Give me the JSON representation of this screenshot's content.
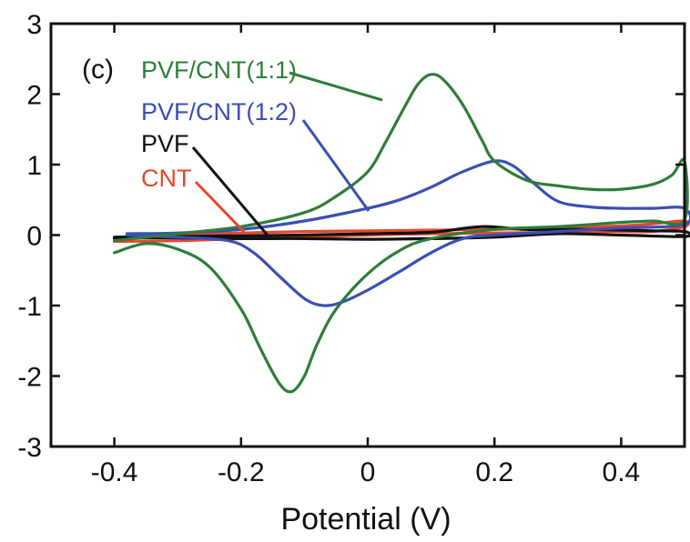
{
  "chart_data": {
    "type": "line",
    "title": "",
    "panel_label": "(c)",
    "xlabel": "Potential (V)",
    "ylabel": "",
    "xlim": [
      -0.5,
      0.5
    ],
    "ylim": [
      -3,
      3
    ],
    "x_ticks": [
      -0.4,
      -0.2,
      0,
      0.2,
      0.4
    ],
    "x_tick_labels": [
      "-0.4",
      "-0.2",
      "0",
      "0.2",
      "0.4"
    ],
    "y_ticks": [
      -3,
      -2,
      -1,
      0,
      1,
      2,
      3
    ],
    "y_tick_labels": [
      "-3",
      "-2",
      "-1",
      "0",
      "1",
      "2",
      "3"
    ],
    "grid": false,
    "legend_placement": "top-left",
    "series": [
      {
        "name": "PVF/CNT(1:1)",
        "color": "#2e7d3a",
        "forward": [
          [
            -0.4,
            -0.08
          ],
          [
            -0.3,
            0.02
          ],
          [
            -0.2,
            0.12
          ],
          [
            -0.1,
            0.32
          ],
          [
            -0.05,
            0.55
          ],
          [
            0.0,
            0.9
          ],
          [
            0.03,
            1.35
          ],
          [
            0.06,
            1.85
          ],
          [
            0.08,
            2.15
          ],
          [
            0.1,
            2.28
          ],
          [
            0.12,
            2.2
          ],
          [
            0.15,
            1.85
          ],
          [
            0.18,
            1.35
          ],
          [
            0.2,
            1.05
          ],
          [
            0.25,
            0.78
          ],
          [
            0.3,
            0.7
          ],
          [
            0.35,
            0.65
          ],
          [
            0.4,
            0.65
          ],
          [
            0.45,
            0.72
          ],
          [
            0.48,
            0.85
          ],
          [
            0.5,
            1.05
          ]
        ],
        "reverse": [
          [
            0.5,
            0.22
          ],
          [
            0.45,
            0.2
          ],
          [
            0.4,
            0.18
          ],
          [
            0.3,
            0.12
          ],
          [
            0.2,
            0.08
          ],
          [
            0.1,
            -0.05
          ],
          [
            0.05,
            -0.22
          ],
          [
            0.0,
            -0.55
          ],
          [
            -0.05,
            -1.05
          ],
          [
            -0.08,
            -1.55
          ],
          [
            -0.1,
            -2.0
          ],
          [
            -0.12,
            -2.22
          ],
          [
            -0.14,
            -2.1
          ],
          [
            -0.17,
            -1.6
          ],
          [
            -0.2,
            -1.05
          ],
          [
            -0.25,
            -0.45
          ],
          [
            -0.3,
            -0.2
          ],
          [
            -0.35,
            -0.12
          ],
          [
            -0.4,
            -0.25
          ]
        ]
      },
      {
        "name": "PVF/CNT(1:2)",
        "color": "#3a4fb5",
        "forward": [
          [
            -0.38,
            0.02
          ],
          [
            -0.3,
            0.03
          ],
          [
            -0.2,
            0.08
          ],
          [
            -0.1,
            0.2
          ],
          [
            0.0,
            0.38
          ],
          [
            0.05,
            0.5
          ],
          [
            0.1,
            0.68
          ],
          [
            0.15,
            0.9
          ],
          [
            0.2,
            1.05
          ],
          [
            0.23,
            0.98
          ],
          [
            0.26,
            0.75
          ],
          [
            0.3,
            0.48
          ],
          [
            0.35,
            0.4
          ],
          [
            0.4,
            0.38
          ],
          [
            0.45,
            0.38
          ],
          [
            0.5,
            0.38
          ]
        ],
        "reverse": [
          [
            0.5,
            0.15
          ],
          [
            0.4,
            0.1
          ],
          [
            0.3,
            0.05
          ],
          [
            0.2,
            0.0
          ],
          [
            0.15,
            -0.05
          ],
          [
            0.1,
            -0.25
          ],
          [
            0.05,
            -0.52
          ],
          [
            0.0,
            -0.78
          ],
          [
            -0.04,
            -0.95
          ],
          [
            -0.07,
            -1.0
          ],
          [
            -0.1,
            -0.9
          ],
          [
            -0.14,
            -0.58
          ],
          [
            -0.18,
            -0.25
          ],
          [
            -0.22,
            -0.08
          ],
          [
            -0.3,
            -0.03
          ],
          [
            -0.38,
            0.0
          ]
        ]
      },
      {
        "name": "PVF",
        "color": "#111111",
        "forward": [
          [
            -0.4,
            -0.03
          ],
          [
            -0.3,
            -0.02
          ],
          [
            -0.2,
            -0.01
          ],
          [
            -0.1,
            0.0
          ],
          [
            0.0,
            0.02
          ],
          [
            0.1,
            0.04
          ],
          [
            0.18,
            0.12
          ],
          [
            0.25,
            0.08
          ],
          [
            0.35,
            0.08
          ],
          [
            0.45,
            0.06
          ],
          [
            0.5,
            0.05
          ]
        ],
        "reverse": [
          [
            0.5,
            -0.02
          ],
          [
            0.4,
            0.0
          ],
          [
            0.3,
            0.02
          ],
          [
            0.2,
            -0.03
          ],
          [
            0.1,
            -0.05
          ],
          [
            0.0,
            -0.06
          ],
          [
            -0.1,
            -0.05
          ],
          [
            -0.2,
            -0.05
          ],
          [
            -0.3,
            -0.04
          ],
          [
            -0.4,
            -0.04
          ]
        ]
      },
      {
        "name": "CNT",
        "color": "#e8472b",
        "forward": [
          [
            -0.4,
            -0.05
          ],
          [
            -0.3,
            0.0
          ],
          [
            -0.2,
            0.03
          ],
          [
            -0.1,
            0.05
          ],
          [
            0.0,
            0.06
          ],
          [
            0.1,
            0.07
          ],
          [
            0.2,
            0.08
          ],
          [
            0.3,
            0.1
          ],
          [
            0.4,
            0.13
          ],
          [
            0.45,
            0.16
          ],
          [
            0.5,
            0.2
          ]
        ],
        "reverse": [
          [
            0.5,
            0.12
          ],
          [
            0.45,
            0.05
          ],
          [
            0.4,
            0.05
          ],
          [
            0.3,
            0.04
          ],
          [
            0.2,
            0.03
          ],
          [
            0.1,
            0.02
          ],
          [
            0.0,
            0.0
          ],
          [
            -0.1,
            -0.02
          ],
          [
            -0.2,
            -0.05
          ],
          [
            -0.3,
            -0.08
          ],
          [
            -0.4,
            -0.09
          ]
        ]
      }
    ]
  }
}
